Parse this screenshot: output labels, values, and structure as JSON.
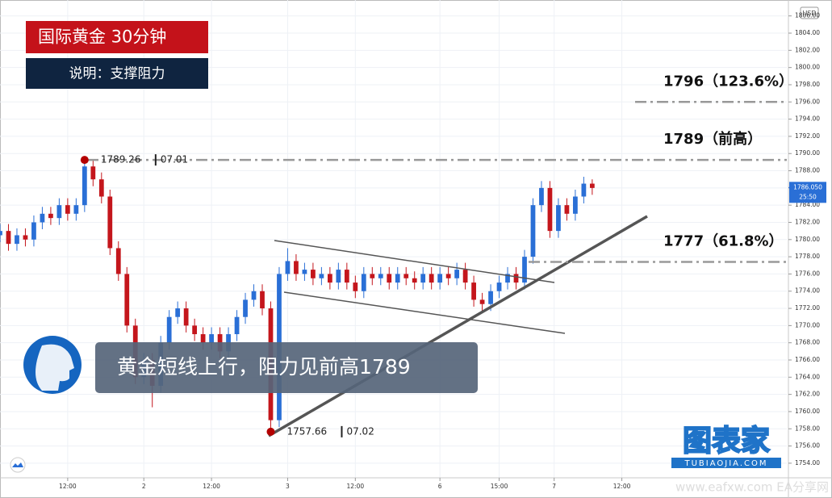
{
  "chart_data": {
    "type": "candlestick",
    "title": "国际黄金 30分钟",
    "subtitle": "说明：支撑阻力",
    "caption": "黄金短线上行，阻力见前高1789",
    "currency": "USD",
    "watermark": "图表家",
    "watermark_url": "TUBIAOJIA.COM",
    "source_watermark": "www.eafxw.com  EA分享网",
    "up_color": "#2a6fd6",
    "down_color": "#c4161c",
    "grid": true,
    "xlim": [
      0,
      93
    ],
    "ylim": [
      1752.3,
      1807.85
    ],
    "xticks": [
      {
        "value": 8,
        "label": "12:00"
      },
      {
        "value": 17,
        "label": "2"
      },
      {
        "value": 25,
        "label": "12:00"
      },
      {
        "value": 34,
        "label": "3"
      },
      {
        "value": 42,
        "label": "12:00"
      },
      {
        "value": 52,
        "label": "6"
      },
      {
        "value": 59,
        "label": "15:00"
      },
      {
        "value": 65.5,
        "label": "7"
      },
      {
        "value": 73.5,
        "label": "12:00"
      }
    ],
    "yticks": [
      {
        "value": 1754,
        "label": "1754.00"
      },
      {
        "value": 1756,
        "label": "1756.00"
      },
      {
        "value": 1758,
        "label": "1758.00"
      },
      {
        "value": 1760,
        "label": "1760.00"
      },
      {
        "value": 1762,
        "label": "1762.00"
      },
      {
        "value": 1764,
        "label": "1764.00"
      },
      {
        "value": 1766,
        "label": "1766.00"
      },
      {
        "value": 1768,
        "label": "1768.00"
      },
      {
        "value": 1770,
        "label": "1770.00"
      },
      {
        "value": 1772,
        "label": "1772.00"
      },
      {
        "value": 1774,
        "label": "1774.00"
      },
      {
        "value": 1776,
        "label": "1776.00"
      },
      {
        "value": 1778,
        "label": "1778.00"
      },
      {
        "value": 1780,
        "label": "1780.00"
      },
      {
        "value": 1782,
        "label": "1782.00"
      },
      {
        "value": 1784,
        "label": "1784.00"
      },
      {
        "value": 1786,
        "label": "1786.00"
      },
      {
        "value": 1788,
        "label": "1788.00"
      },
      {
        "value": 1790,
        "label": "1790.00"
      },
      {
        "value": 1792,
        "label": "1792.00"
      },
      {
        "value": 1794,
        "label": "1794.00"
      },
      {
        "value": 1796,
        "label": "1796.00"
      },
      {
        "value": 1798,
        "label": "1798.00"
      },
      {
        "value": 1800,
        "label": "1800.00"
      },
      {
        "value": 1802,
        "label": "1802.00"
      },
      {
        "value": 1804,
        "label": "1804.00"
      },
      {
        "value": 1806,
        "label": "1806.00"
      }
    ],
    "open": [
      1780.5,
      1781,
      1779.5,
      1780.5,
      1780,
      1782,
      1783,
      1782.5,
      1784,
      1783,
      1784,
      1788.5,
      1787,
      1785,
      1779,
      1776,
      1770,
      1764,
      1766,
      1763,
      1768,
      1771,
      1772,
      1770,
      1769,
      1768,
      1769,
      1767,
      1769,
      1771,
      1773,
      1774,
      1772,
      1759,
      1776,
      1777.5,
      1776,
      1776.5,
      1775.5,
      1776,
      1775,
      1776.5,
      1775,
      1774,
      1776,
      1775.5,
      1776,
      1775,
      1776,
      1775.5,
      1775,
      1776,
      1775,
      1776,
      1775.5,
      1776.5,
      1775,
      1773,
      1772.5,
      1774,
      1775,
      1776,
      1775,
      1778,
      1784,
      1786,
      1781,
      1784,
      1783,
      1785,
      1786.5
    ],
    "high": [
      1781.8,
      1781.8,
      1781.3,
      1781.3,
      1782.8,
      1783.8,
      1783.8,
      1784.8,
      1784.8,
      1784.8,
      1789.26,
      1789.3,
      1787.8,
      1785.8,
      1779.8,
      1776.8,
      1770.8,
      1766.8,
      1766.8,
      1768.8,
      1771.8,
      1772.8,
      1772.8,
      1770.8,
      1769.8,
      1769.8,
      1769.8,
      1769.8,
      1771.8,
      1773.8,
      1774.8,
      1774.8,
      1772.8,
      1776.8,
      1779,
      1778.3,
      1777.3,
      1777.3,
      1776.8,
      1776.8,
      1777.3,
      1777.3,
      1775.8,
      1776.8,
      1776.8,
      1776.8,
      1776.8,
      1776.8,
      1776.8,
      1776.3,
      1776.8,
      1776.8,
      1776.8,
      1776.8,
      1777.3,
      1777.3,
      1775.8,
      1773.8,
      1774.8,
      1775.8,
      1776.8,
      1776.8,
      1778.8,
      1784.8,
      1786.8,
      1786.8,
      1784.8,
      1784.8,
      1785.8,
      1787.3,
      1787
    ],
    "low": [
      1779.7,
      1778.7,
      1778.7,
      1779.2,
      1779.2,
      1781.2,
      1781.7,
      1781.7,
      1782.2,
      1782.2,
      1783.2,
      1786.2,
      1784.2,
      1778.2,
      1775.2,
      1769.2,
      1763.2,
      1763.2,
      1760.5,
      1762.2,
      1767.2,
      1770.2,
      1769.2,
      1768.2,
      1767.2,
      1767.2,
      1766.2,
      1766.2,
      1768.2,
      1770.2,
      1772.2,
      1771.2,
      1757.66,
      1758.2,
      1775.2,
      1775.2,
      1775.2,
      1774.7,
      1774.7,
      1774.2,
      1774.2,
      1774.2,
      1773.2,
      1773.2,
      1774.7,
      1774.7,
      1774.2,
      1774.2,
      1774.7,
      1774.2,
      1774.2,
      1774.2,
      1774.2,
      1774.7,
      1774.7,
      1774.2,
      1772.2,
      1771.7,
      1771.7,
      1773.2,
      1774.2,
      1774.2,
      1774.2,
      1777.2,
      1783.2,
      1780.2,
      1780.2,
      1782.2,
      1782.2,
      1784.2,
      1785.2
    ],
    "close": [
      1781,
      1779.5,
      1780.5,
      1780,
      1782,
      1783,
      1782.5,
      1784,
      1783,
      1784,
      1788.5,
      1787,
      1785,
      1779,
      1776,
      1770,
      1764,
      1766,
      1763,
      1768,
      1771,
      1772,
      1770,
      1769,
      1768,
      1769,
      1767,
      1769,
      1771,
      1773,
      1774,
      1772,
      1759,
      1776,
      1777.5,
      1776,
      1776.5,
      1775.5,
      1776,
      1775,
      1776.5,
      1775,
      1774,
      1776,
      1775.5,
      1776,
      1775,
      1776,
      1775.5,
      1775,
      1776,
      1775,
      1776,
      1775.5,
      1776.5,
      1775,
      1773,
      1772.5,
      1774,
      1775,
      1776,
      1775,
      1778,
      1784,
      1786,
      1781,
      1784,
      1783,
      1785,
      1786.5,
      1786
    ],
    "last_price": {
      "value": 1786.05,
      "label": "1786.050"
    },
    "countdown": "25:50",
    "extremes": [
      {
        "x": 10,
        "value": 1789.26,
        "date": "07.01"
      },
      {
        "x": 32,
        "value": 1757.66,
        "date": "07.02"
      }
    ],
    "levels": [
      {
        "value": 1796,
        "label": "1796（123.6%）"
      },
      {
        "value": 1789.26,
        "label": "1789（前高）"
      },
      {
        "value": 1777.4,
        "label": "1777（61.8%）"
      }
    ]
  }
}
